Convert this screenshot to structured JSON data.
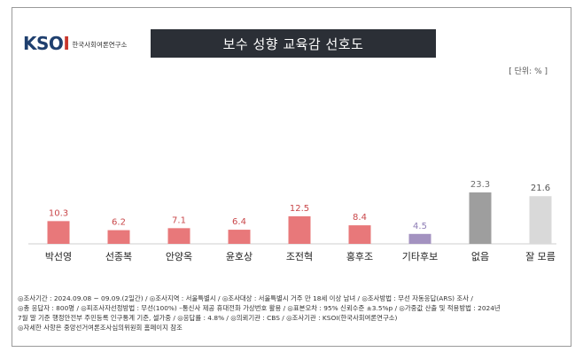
{
  "logo": {
    "mark_k": "K",
    "mark_so": "SO",
    "mark_i": "I",
    "text": "한국사회여론연구소"
  },
  "header": {
    "title": "보수 성향 교육감 선호도",
    "unit": "[ 단위: % ]"
  },
  "chart_data": {
    "type": "bar",
    "title": "보수 성향 교육감 선호도",
    "categories": [
      "박선영",
      "선종복",
      "안양옥",
      "윤호상",
      "조전혁",
      "홍후조",
      "기타후보",
      "없음",
      "잘 모름"
    ],
    "values": [
      10.3,
      6.2,
      7.1,
      6.4,
      12.5,
      8.4,
      4.5,
      23.3,
      21.6
    ],
    "value_labels": [
      "10.3",
      "6.2",
      "7.1",
      "6.4",
      "12.5",
      "8.4",
      "4.5",
      "23.3",
      "21.6"
    ],
    "colors": [
      "#e8787a",
      "#e8787a",
      "#e8787a",
      "#e8787a",
      "#e8787a",
      "#e8787a",
      "#a392c0",
      "#9e9e9e",
      "#d9d9d9"
    ],
    "label_colors": [
      "#c9474a",
      "#c9474a",
      "#c9474a",
      "#c9474a",
      "#c9474a",
      "#c9474a",
      "#8e7db5",
      "#6f6f6f",
      "#555555"
    ],
    "unit": "%",
    "xlabel": "",
    "ylabel": "",
    "ylim": [
      0,
      30
    ]
  },
  "footnote": {
    "line1": "◎조사기간 : 2024.09.08 ~ 09.09.(2일간)  / ◎조사지역 : 서울특별시 / ◎조사대상 : 서울특별시 거주 만 18세 이상 남녀 / ◎조사방법 : 무선 자동응답(ARS) 조사 /",
    "line2": "◎총 응답자 : 800명 / ◎피조사자선정방법 : 무선(100%) –통신사 제공 휴대전화 가상번호 활용 / ◎표본오차 : 95% 신뢰수준 ±3.5%p / ◎가중값 산출 및 적용방법 : 2024년",
    "line3": "7월 말 기준 행정안전부 주민등록 인구통계 기준, 셀가중 / ◎응답률 : 4.8% / ◎의뢰기관 : CBS / ◎조사기관 : KSOI(한국사회여론연구소)",
    "line4": "◎자세한 사항은 중앙선거여론조사심의위원회 홈페이지 참조"
  }
}
